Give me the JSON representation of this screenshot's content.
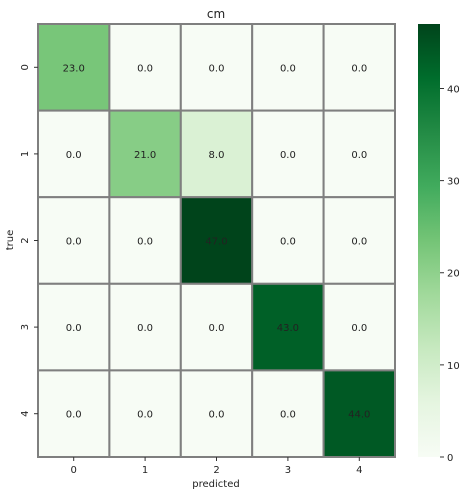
{
  "chart_data": {
    "type": "heatmap",
    "title": "cm",
    "xlabel": "predicted",
    "ylabel": "true",
    "x_categories": [
      "0",
      "1",
      "2",
      "3",
      "4"
    ],
    "y_categories": [
      "0",
      "1",
      "2",
      "3",
      "4"
    ],
    "values": [
      [
        23.0,
        0.0,
        0.0,
        0.0,
        0.0
      ],
      [
        0.0,
        21.0,
        8.0,
        0.0,
        0.0
      ],
      [
        0.0,
        0.0,
        47.0,
        0.0,
        0.0
      ],
      [
        0.0,
        0.0,
        0.0,
        43.0,
        0.0
      ],
      [
        0.0,
        0.0,
        0.0,
        0.0,
        44.0
      ]
    ],
    "cell_labels": [
      [
        "23.0",
        "0.0",
        "0.0",
        "0.0",
        "0.0"
      ],
      [
        "0.0",
        "21.0",
        "8.0",
        "0.0",
        "0.0"
      ],
      [
        "0.0",
        "0.0",
        "47.0",
        "0.0",
        "0.0"
      ],
      [
        "0.0",
        "0.0",
        "0.0",
        "43.0",
        "0.0"
      ],
      [
        "0.0",
        "0.0",
        "0.0",
        "0.0",
        "44.0"
      ]
    ],
    "colormap": "Greens",
    "colorbar_range": [
      0,
      47
    ],
    "colorbar_ticks": [
      0,
      10,
      20,
      30,
      40
    ],
    "colorbar_tick_labels": [
      "0",
      "10",
      "20",
      "30",
      "40"
    ],
    "grid_line_color": "#7f7f7f",
    "colors": {
      "low": "#f7fcf5",
      "high": "#00441b"
    }
  }
}
